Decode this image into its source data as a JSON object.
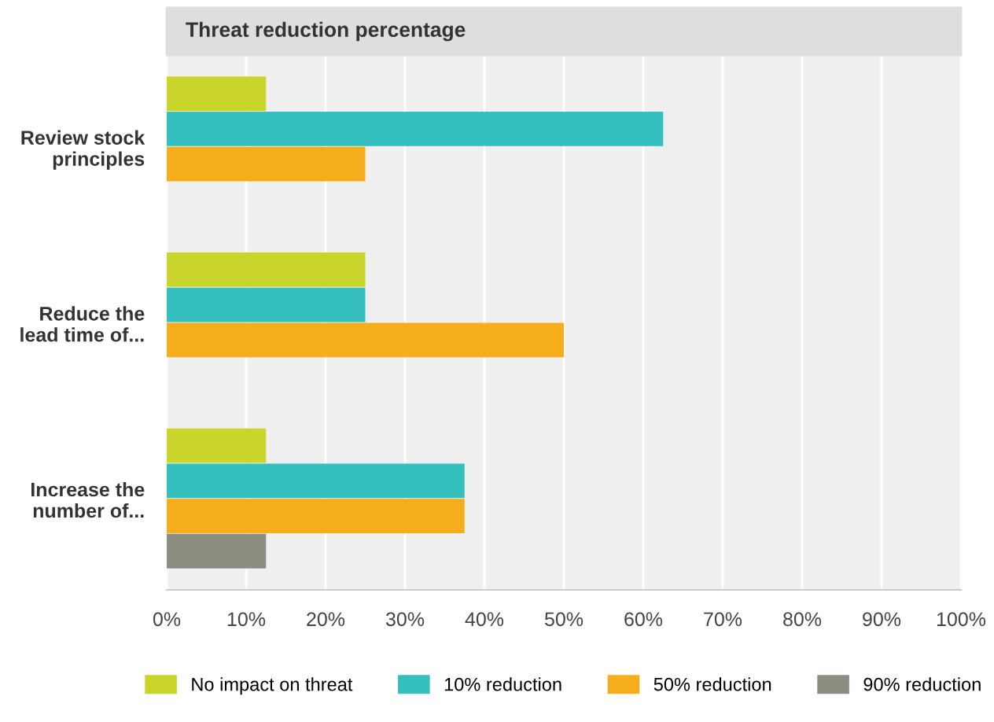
{
  "chart_data": {
    "type": "bar",
    "orientation": "horizontal",
    "title": "Threat reduction percentage",
    "categories": [
      "Review stock\nprinciples",
      "Reduce the\nlead time of...",
      "Increase the\nnumber of..."
    ],
    "series": [
      {
        "name": "No impact on threat",
        "color": "#c9d52a",
        "values": [
          12.5,
          25,
          12.5
        ]
      },
      {
        "name": "10% reduction",
        "color": "#36bfbf",
        "values": [
          62.5,
          25,
          37.5
        ]
      },
      {
        "name": "50% reduction",
        "color": "#f5ad1c",
        "values": [
          25,
          50,
          37.5
        ]
      },
      {
        "name": "90% reduction",
        "color": "#8c8c7f",
        "values": [
          null,
          null,
          12.5
        ]
      }
    ],
    "xlim": [
      0,
      100
    ],
    "xticks": [
      {
        "value": 0,
        "label": "0%"
      },
      {
        "value": 10,
        "label": "10%"
      },
      {
        "value": 20,
        "label": "20%"
      },
      {
        "value": 30,
        "label": "30%"
      },
      {
        "value": 40,
        "label": "40%"
      },
      {
        "value": 50,
        "label": "50%"
      },
      {
        "value": 60,
        "label": "60%"
      },
      {
        "value": 70,
        "label": "70%"
      },
      {
        "value": 80,
        "label": "80%"
      },
      {
        "value": 90,
        "label": "90%"
      },
      {
        "value": 100,
        "label": "100%"
      }
    ],
    "grid": "x",
    "legend": "bottom"
  }
}
